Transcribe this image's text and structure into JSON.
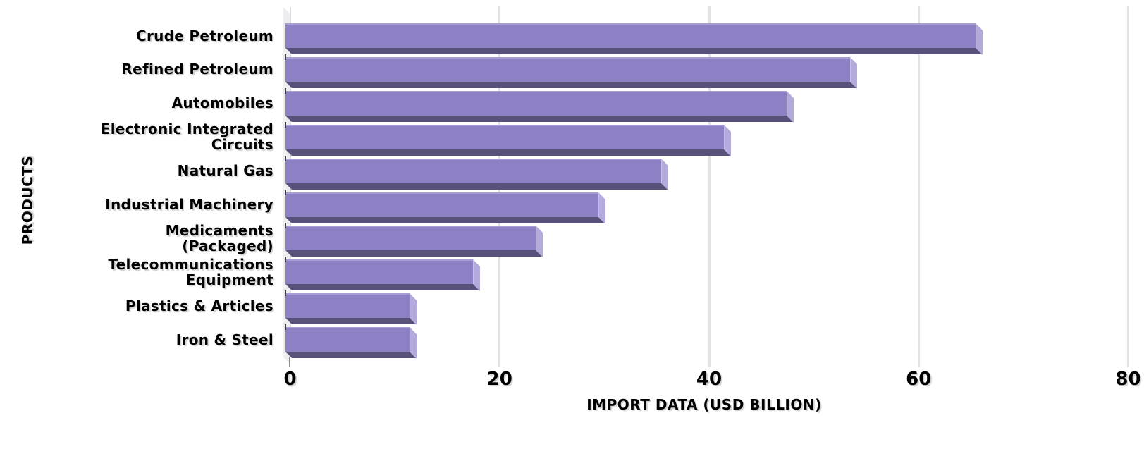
{
  "chart_data": {
    "type": "bar",
    "orientation": "horizontal",
    "style": "3d-extruded-bars",
    "title": "",
    "xlabel": "IMPORT DATA (USD BILLION)",
    "ylabel": "PRODUCTS",
    "categories": [
      "Crude Petroleum",
      "Refined Petroleum",
      "Automobiles",
      "Electronic Integrated\nCircuits",
      "Natural Gas",
      "Industrial Machinery",
      "Medicaments\n(Packaged)",
      "Telecommunications\nEquipment",
      "Plastics & Articles",
      "Iron & Steel"
    ],
    "values": [
      66,
      54,
      48,
      42,
      36,
      30,
      24,
      18,
      12,
      12
    ],
    "xlim": [
      0,
      80
    ],
    "xticks": [
      0,
      20,
      40,
      60,
      80
    ],
    "grid": true,
    "legend": false,
    "colors": {
      "bar_face": "#8e80c5",
      "bar_face_highlight": "#a79cd4",
      "bar_side": "#b4aadb",
      "bar_bottom": "#585179",
      "gridline": "#e3e3e5",
      "axis_wall": "#ededef",
      "text": "#000000",
      "background": "#ffffff"
    }
  }
}
